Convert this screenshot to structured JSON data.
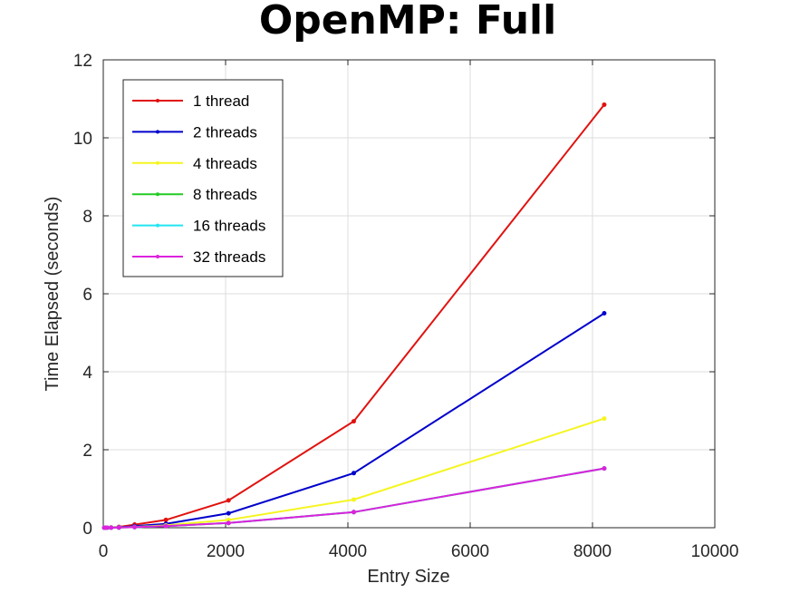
{
  "chart_data": {
    "type": "line",
    "title": "OpenMP: Full",
    "xlabel": "Entry Size",
    "ylabel": "Time Elapsed (seconds)",
    "xlim": [
      0,
      10000
    ],
    "ylim": [
      0,
      12
    ],
    "xticks": [
      0,
      2000,
      4000,
      6000,
      8000,
      10000
    ],
    "yticks": [
      0,
      2,
      4,
      6,
      8,
      10,
      12
    ],
    "grid": true,
    "legend_position": "top-left",
    "x": [
      16,
      32,
      64,
      128,
      256,
      512,
      1024,
      2048,
      4096,
      8192
    ],
    "series": [
      {
        "name": "1 thread",
        "color": "#e0120f",
        "values": [
          0.0,
          0.0,
          0.0,
          0.005,
          0.02,
          0.08,
          0.2,
          0.7,
          2.73,
          10.85
        ]
      },
      {
        "name": "2 threads",
        "color": "#0000cc",
        "values": [
          0.0,
          0.0,
          0.0,
          0.003,
          0.01,
          0.04,
          0.1,
          0.37,
          1.4,
          5.5
        ]
      },
      {
        "name": "4 threads",
        "color": "#f5f520",
        "values": [
          0.0,
          0.0,
          0.0,
          0.002,
          0.006,
          0.02,
          0.06,
          0.2,
          0.72,
          2.8
        ]
      },
      {
        "name": "8 threads",
        "color": "#22cc22",
        "values": [
          0.0,
          0.0,
          0.0,
          0.001,
          0.004,
          0.015,
          0.04,
          0.12,
          0.4,
          1.52
        ]
      },
      {
        "name": "16 threads",
        "color": "#22e5f0",
        "values": [
          0.0,
          0.0,
          0.0,
          0.001,
          0.004,
          0.015,
          0.04,
          0.12,
          0.4,
          1.52
        ]
      },
      {
        "name": "32 threads",
        "color": "#dd22dd",
        "values": [
          0.0,
          0.0,
          0.0,
          0.001,
          0.004,
          0.015,
          0.04,
          0.12,
          0.4,
          1.52
        ]
      }
    ]
  }
}
